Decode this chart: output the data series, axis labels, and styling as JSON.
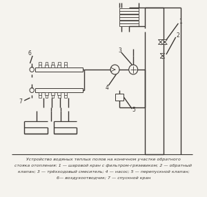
{
  "caption_line1": "Устройство водяных теплых полов на конечном участке обратного",
  "caption_line2": "стояка отопления: 1 — шаровой кран с фильтром-грязевиком; 2 — обратный",
  "caption_line3": "клапан; 3 — трёхходовый смеситель; 4 — насос; 5 — перепускной клапан;",
  "caption_line4": "6— воздухоотводчик; 7 — спускной кран",
  "bg_color": "#f5f3ee",
  "line_color": "#3a3632",
  "label_color": "#3a3632",
  "caption_color": "#3a3632"
}
